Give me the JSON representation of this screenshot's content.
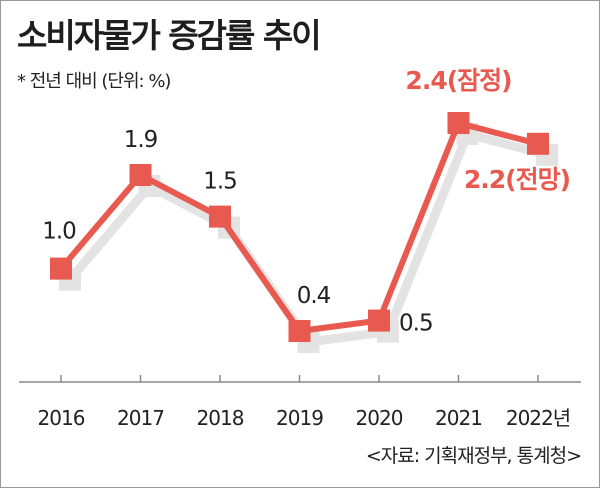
{
  "title": "소비자물가 증감률 추이",
  "subtitle": "* 전년 대비 (단위: %)",
  "source": "<자료: 기획재정부, 통계청>",
  "accent_color": "#e85a4f",
  "shadow_color": "#e3e3e3",
  "chart_data": {
    "type": "line",
    "categories": [
      "2016",
      "2017",
      "2018",
      "2019",
      "2020",
      "2021",
      "2022년"
    ],
    "values": [
      1.0,
      1.9,
      1.5,
      0.4,
      0.5,
      2.4,
      2.2
    ],
    "labels": [
      "1.0",
      "1.9",
      "1.5",
      "0.4",
      "0.5",
      "2.4(잠정)",
      "2.2(전망)"
    ],
    "highlighted": [
      false,
      false,
      false,
      false,
      false,
      true,
      true
    ],
    "ylim": [
      0,
      2.6
    ],
    "grid": false,
    "legend": "none"
  }
}
